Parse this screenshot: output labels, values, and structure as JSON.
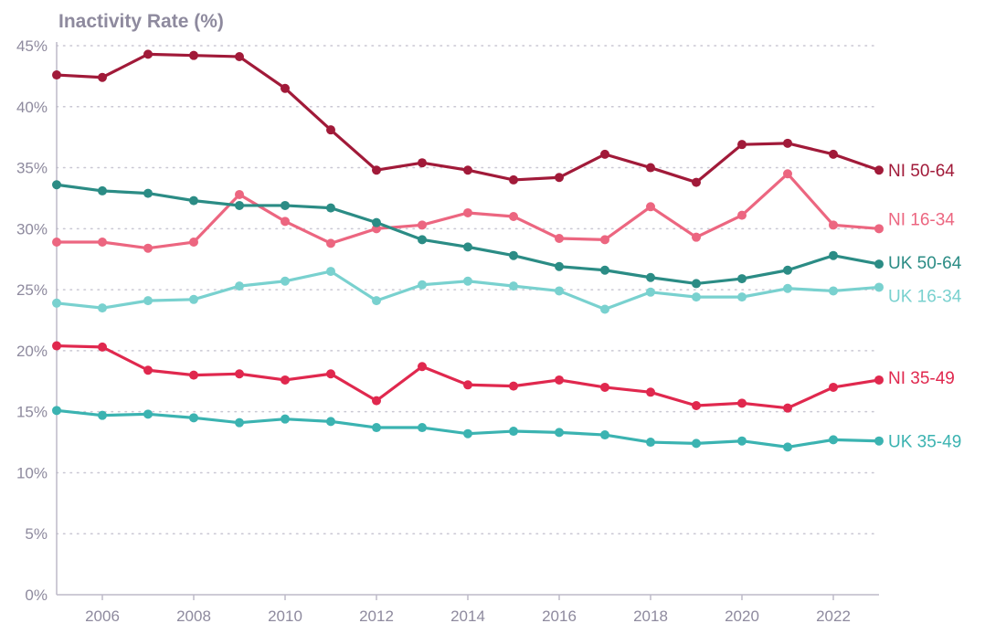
{
  "chart_data": {
    "type": "line",
    "ylabel": "Inactivity Rate (%)",
    "xlabel": "",
    "xlim": [
      2005,
      2023
    ],
    "ylim": [
      0,
      45
    ],
    "x_ticks": [
      2006,
      2008,
      2010,
      2012,
      2014,
      2016,
      2018,
      2020,
      2022
    ],
    "y_ticks": [
      0,
      5,
      10,
      15,
      20,
      25,
      30,
      35,
      40,
      45
    ],
    "y_tick_labels": [
      "0%",
      "5%",
      "10%",
      "15%",
      "20%",
      "25%",
      "30%",
      "35%",
      "40%",
      "45%"
    ],
    "grid": "horizontal-dotted",
    "x": [
      2005,
      2006,
      2007,
      2008,
      2009,
      2010,
      2011,
      2012,
      2013,
      2014,
      2015,
      2016,
      2017,
      2018,
      2019,
      2020,
      2021,
      2022,
      2023
    ],
    "series": [
      {
        "name": "NI 50-64",
        "color": "#a11a39",
        "values": [
          42.6,
          42.4,
          44.3,
          44.2,
          44.1,
          41.5,
          38.1,
          34.8,
          35.4,
          34.8,
          34.0,
          34.2,
          36.1,
          35.0,
          33.8,
          36.9,
          37.0,
          36.1,
          34.8
        ]
      },
      {
        "name": "NI 16-34",
        "color": "#ec6680",
        "values": [
          28.9,
          28.9,
          28.4,
          28.9,
          32.8,
          30.6,
          28.8,
          30.0,
          30.3,
          31.3,
          31.0,
          29.2,
          29.1,
          31.8,
          29.3,
          31.1,
          34.5,
          30.3,
          30.0
        ]
      },
      {
        "name": "UK 50-64",
        "color": "#2b8c85",
        "values": [
          33.6,
          33.1,
          32.9,
          32.3,
          31.9,
          31.9,
          31.7,
          30.5,
          29.1,
          28.5,
          27.8,
          26.9,
          26.6,
          26.0,
          25.5,
          25.9,
          26.6,
          27.8,
          27.1
        ]
      },
      {
        "name": "UK 16-34",
        "color": "#79d1cf",
        "values": [
          23.9,
          23.5,
          24.1,
          24.2,
          25.3,
          25.7,
          26.5,
          24.1,
          25.4,
          25.7,
          25.3,
          24.9,
          23.4,
          24.8,
          24.4,
          24.4,
          25.1,
          24.9,
          25.2
        ]
      },
      {
        "name": "NI 35-49",
        "color": "#e0284e",
        "values": [
          20.4,
          20.3,
          18.4,
          18.0,
          18.1,
          17.6,
          18.1,
          15.9,
          18.7,
          17.2,
          17.1,
          17.6,
          17.0,
          16.6,
          15.5,
          15.7,
          15.3,
          17.0,
          17.6
        ]
      },
      {
        "name": "UK 35-49",
        "color": "#3bb3b1",
        "values": [
          15.1,
          14.7,
          14.8,
          14.5,
          14.1,
          14.4,
          14.2,
          13.7,
          13.7,
          13.2,
          13.4,
          13.3,
          13.1,
          12.5,
          12.4,
          12.6,
          12.1,
          12.7,
          12.6
        ]
      }
    ]
  }
}
